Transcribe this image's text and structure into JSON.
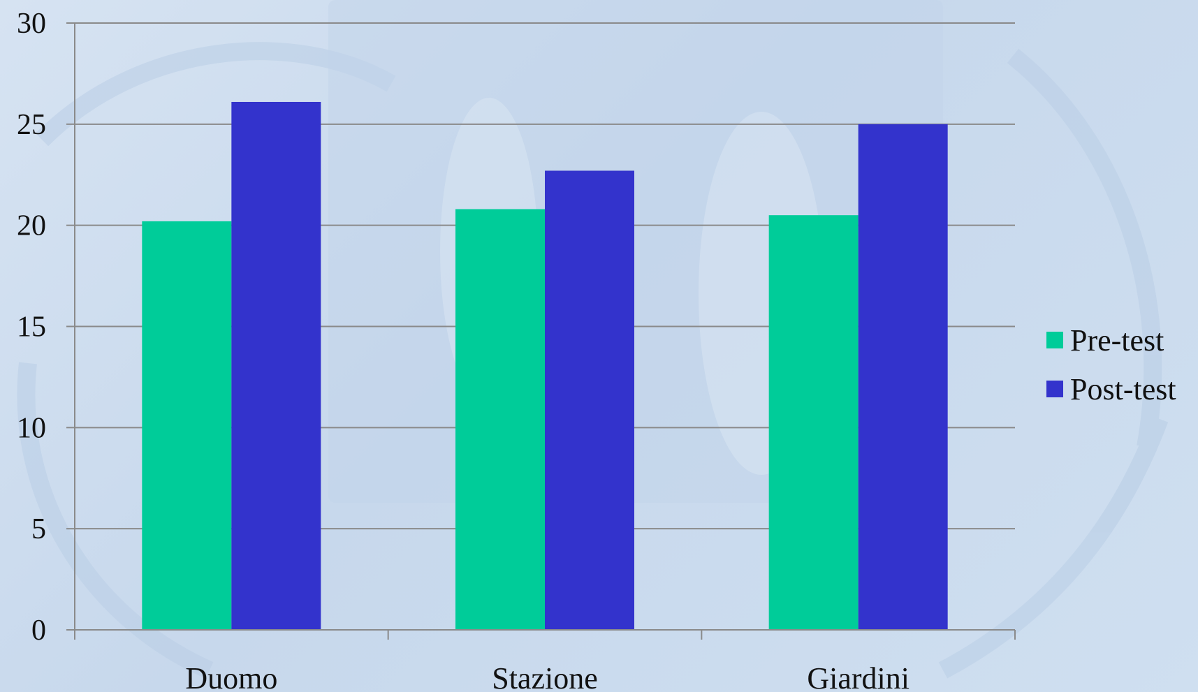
{
  "chart_data": {
    "type": "bar",
    "categories": [
      "Duomo",
      "Stazione",
      "Giardini"
    ],
    "series": [
      {
        "name": "Pre-test",
        "values": [
          20.2,
          20.8,
          20.5
        ],
        "color": "#00cc99"
      },
      {
        "name": "Post-test",
        "values": [
          26.1,
          22.7,
          25.0
        ],
        "color": "#3333cc"
      }
    ],
    "title": "",
    "xlabel": "",
    "ylabel": "",
    "ylim": [
      0,
      30
    ],
    "yticks": [
      "0",
      "5",
      "10",
      "15",
      "20",
      "25",
      "30"
    ],
    "grid": true,
    "legend_position": "right"
  }
}
